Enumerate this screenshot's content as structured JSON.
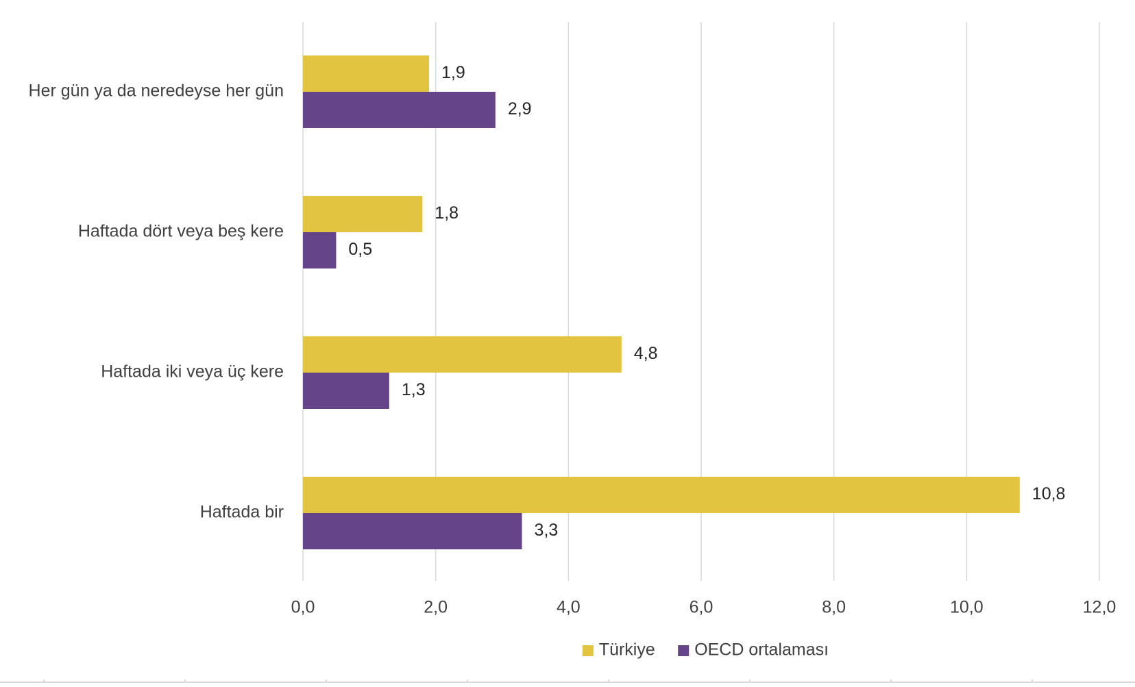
{
  "chart_data": {
    "type": "bar",
    "orientation": "horizontal",
    "categories": [
      "Her gün ya da neredeyse her gün",
      "Haftada dört veya beş kere",
      "Haftada iki veya üç kere",
      "Haftada bir"
    ],
    "series": [
      {
        "name": "Türkiye",
        "color": "#E3C441",
        "values": [
          1.9,
          1.8,
          4.8,
          10.8
        ],
        "labels": [
          "1,9",
          "1,8",
          "4,8",
          "10,8"
        ]
      },
      {
        "name": "OECD ortalaması",
        "color": "#66448A",
        "values": [
          2.9,
          0.5,
          1.3,
          3.3
        ],
        "labels": [
          "2,9",
          "0,5",
          "1,3",
          "3,3"
        ]
      }
    ],
    "xlim": [
      0,
      12
    ],
    "xticks": [
      0,
      2,
      4,
      6,
      8,
      10,
      12
    ],
    "xtick_labels": [
      "0,0",
      "2,0",
      "4,0",
      "6,0",
      "8,0",
      "10,0",
      "12,0"
    ],
    "title": "",
    "xlabel": "",
    "ylabel": "",
    "grid": "vertical",
    "legend_position": "bottom"
  }
}
